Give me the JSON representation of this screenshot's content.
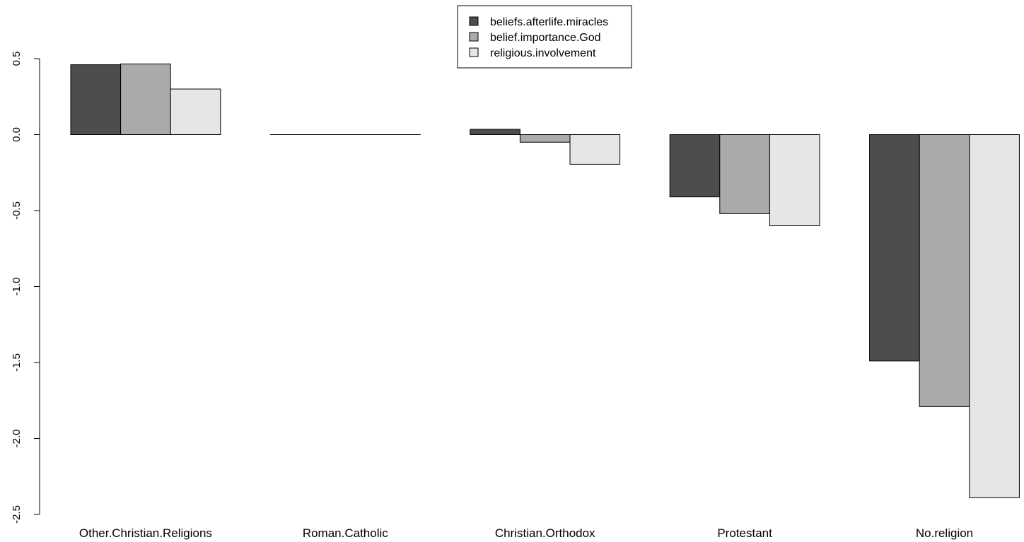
{
  "chart_data": {
    "type": "bar",
    "categories": [
      "Other.Christian.Religions",
      "Roman.Catholic",
      "Christian.Orthodox",
      "Protestant",
      "No.religion"
    ],
    "series": [
      {
        "name": "beliefs.afterlife.miracles",
        "color": "#4d4d4d",
        "values": [
          0.46,
          0.0,
          0.035,
          -0.41,
          -1.49
        ]
      },
      {
        "name": "belief.importance.God",
        "color": "#aaaaaa",
        "values": [
          0.465,
          0.0,
          -0.05,
          -0.52,
          -1.79
        ]
      },
      {
        "name": "religious.involvement",
        "color": "#e6e6e6",
        "values": [
          0.3,
          0.0,
          -0.195,
          -0.6,
          -2.39
        ]
      }
    ],
    "ylim": [
      -2.5,
      0.5
    ],
    "yticks": [
      -2.5,
      -2.0,
      -1.5,
      -1.0,
      -0.5,
      0.0,
      0.5
    ],
    "ytick_labels": [
      "-2.5",
      "-2.0",
      "-1.5",
      "-1.0",
      "-0.5",
      "0.0",
      "0.5"
    ],
    "legend_position": "top-center",
    "grid": false
  }
}
